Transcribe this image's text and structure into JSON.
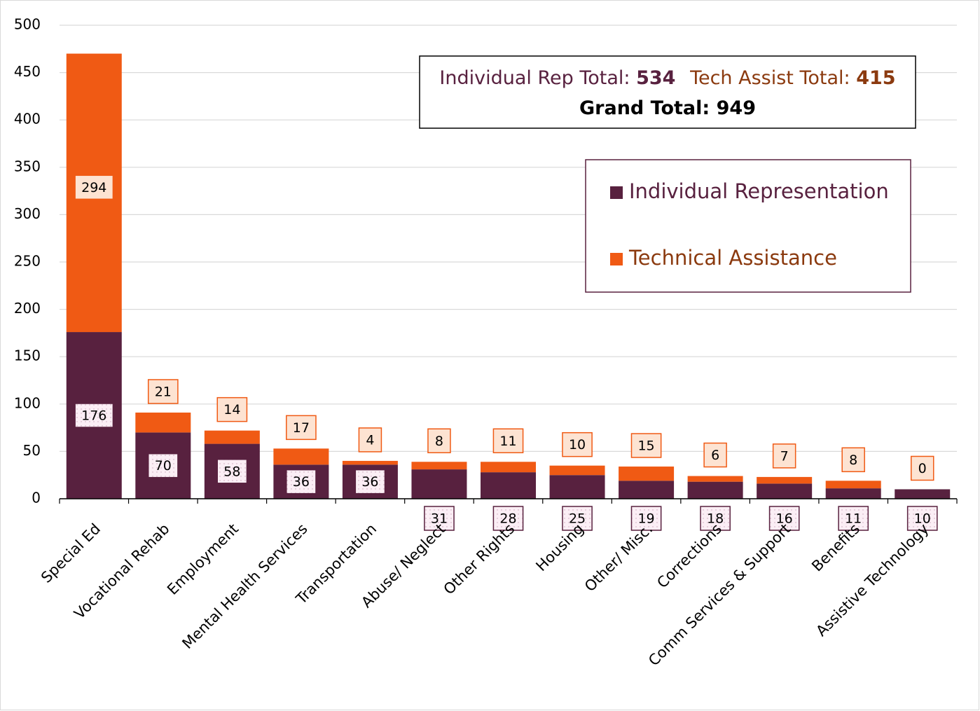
{
  "chart_data": {
    "type": "stacked_bar",
    "categories": [
      "Special Ed",
      "Vocational Rehab",
      "Employment",
      "Mental Health Services",
      "Transportation",
      "Abuse/ Neglect",
      "Other Rights",
      "Housing",
      "Other/ Misc.",
      "Corrections",
      "Comm Services & Support",
      "Benefits",
      "Assistive Technology"
    ],
    "series": [
      {
        "name": "Individual Representation",
        "color": "#58213f",
        "values": [
          176,
          70,
          58,
          36,
          36,
          31,
          28,
          25,
          19,
          18,
          16,
          11,
          10
        ]
      },
      {
        "name": "Technical Assistance",
        "color": "#f05a14",
        "values": [
          294,
          21,
          14,
          17,
          4,
          8,
          11,
          10,
          15,
          6,
          7,
          8,
          0
        ]
      }
    ],
    "ylim": [
      0,
      500
    ],
    "yticks": [
      0,
      50,
      100,
      150,
      200,
      250,
      300,
      350,
      400,
      450,
      500
    ],
    "grid": true,
    "legend": "upper right",
    "annotations": [
      {
        "label": "Individual Rep Total:",
        "value": 534
      },
      {
        "label": "Tech Assist Total:",
        "value": 415
      },
      {
        "label": "Grand Total:",
        "value": 949
      }
    ]
  }
}
